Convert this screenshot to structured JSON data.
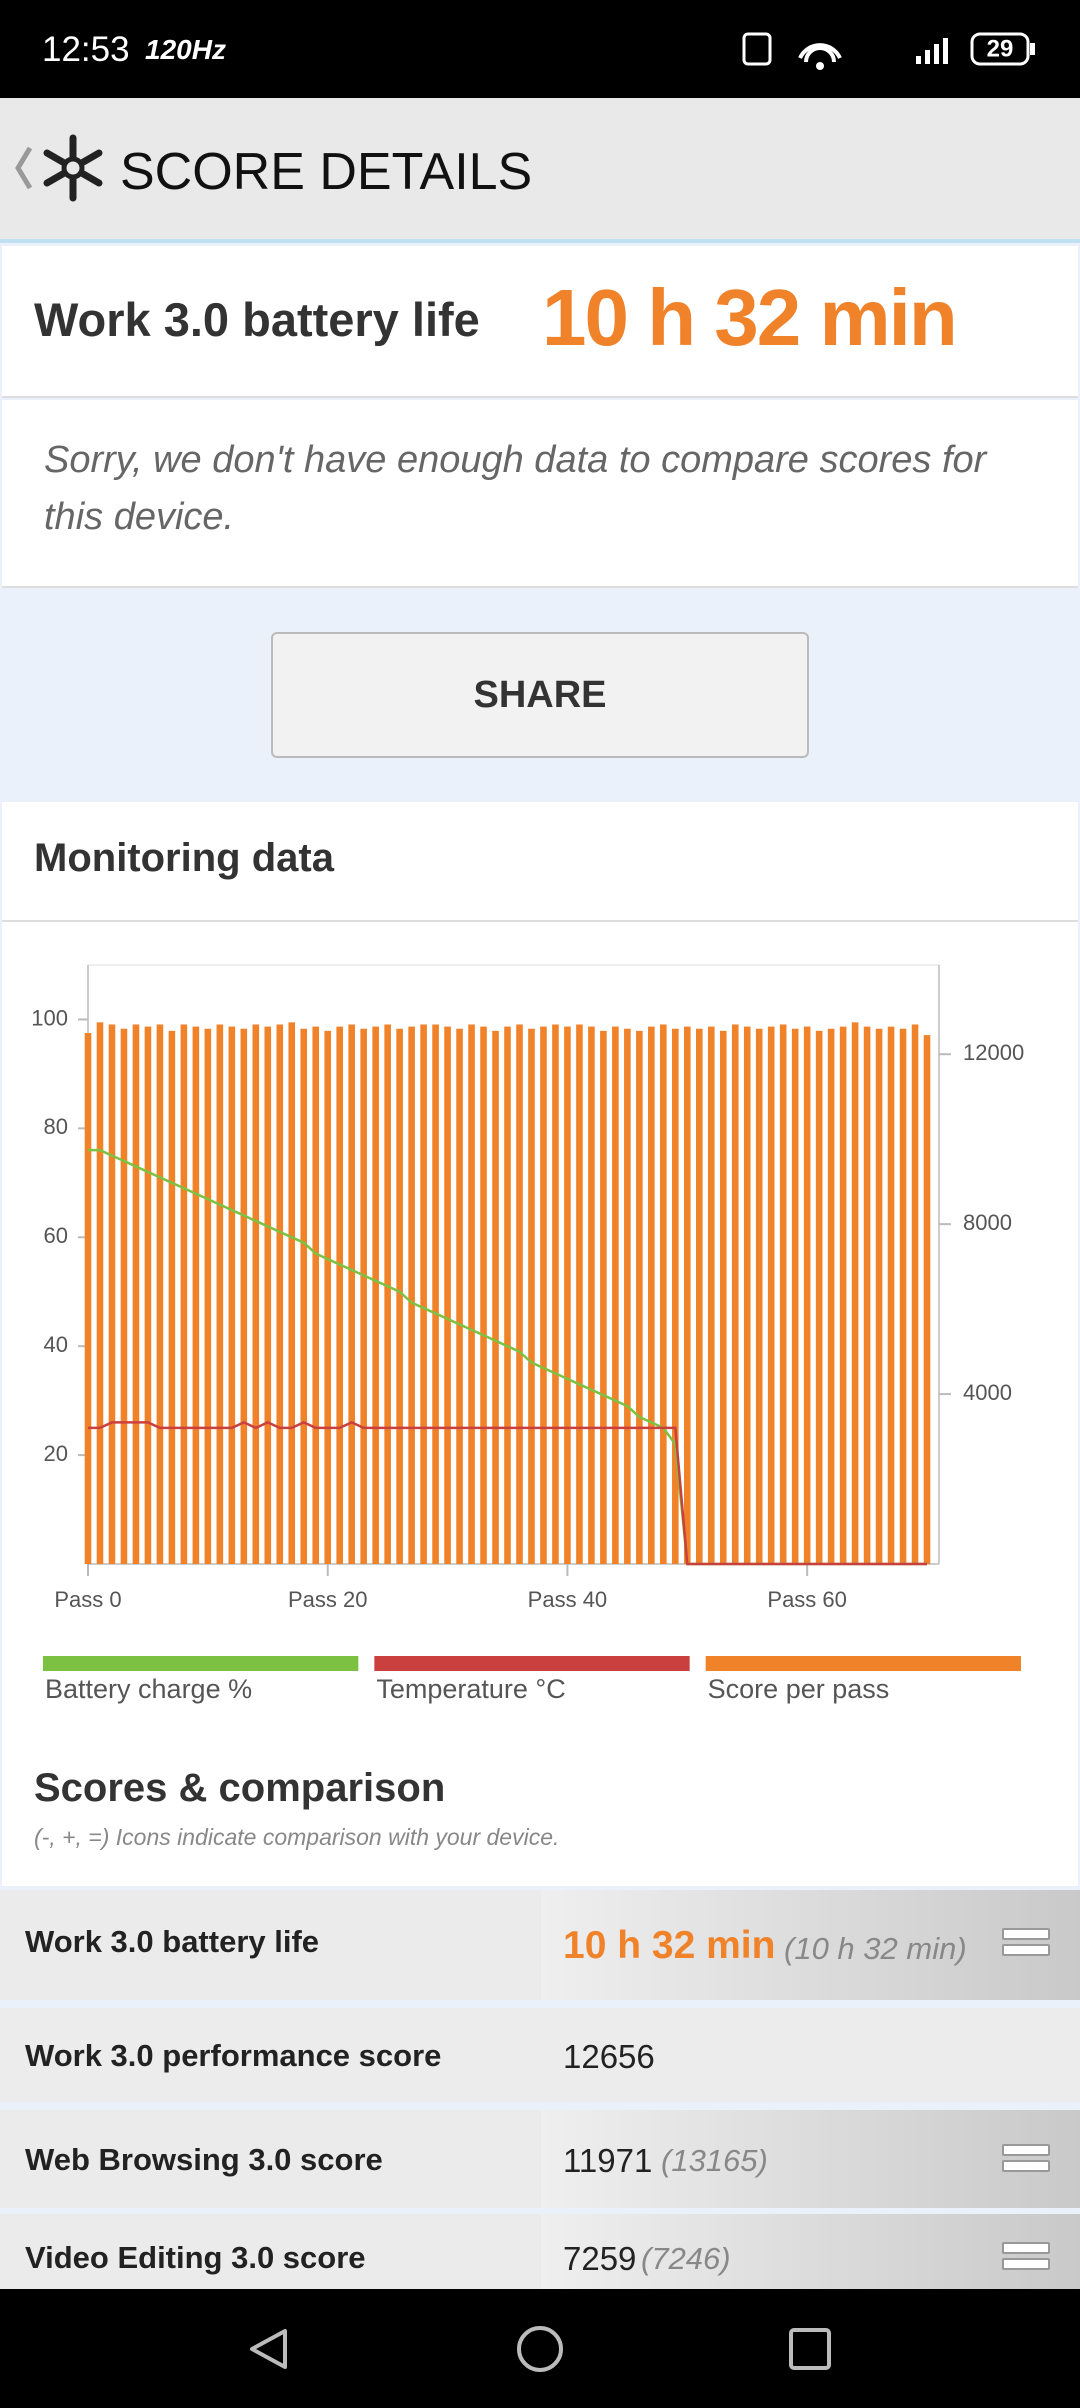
{
  "status_bar": {
    "time": "12:53",
    "refresh_rate": "120Hz",
    "battery": "29"
  },
  "header": {
    "title": "SCORE DETAILS"
  },
  "summary": {
    "label": "Work 3.0 battery life",
    "value": "10 h 32 min",
    "note": "Sorry, we don't have enough data to compare scores for this device."
  },
  "share_button": "SHARE",
  "monitoring": {
    "title": "Monitoring data"
  },
  "chart_data": {
    "type": "bar",
    "x": [
      0,
      1,
      2,
      3,
      4,
      5,
      6,
      7,
      8,
      9,
      10,
      11,
      12,
      13,
      14,
      15,
      16,
      17,
      18,
      19,
      20,
      21,
      22,
      23,
      24,
      25,
      26,
      27,
      28,
      29,
      30,
      31,
      32,
      33,
      34,
      35,
      36,
      37,
      38,
      39,
      40,
      41,
      42,
      43,
      44,
      45,
      46,
      47,
      48,
      49,
      50,
      51,
      52,
      53,
      54,
      55,
      56,
      57,
      58,
      59,
      60,
      61,
      62,
      63,
      64,
      65,
      66,
      67,
      68,
      69,
      70
    ],
    "xlim": [
      0,
      71
    ],
    "xticks": [
      {
        "value": 0,
        "label": "Pass 0"
      },
      {
        "value": 20,
        "label": "Pass 20"
      },
      {
        "value": 40,
        "label": "Pass 40"
      },
      {
        "value": 60,
        "label": "Pass 60"
      }
    ],
    "ylim": [
      0,
      110
    ],
    "yticks": [
      20,
      40,
      60,
      80,
      100
    ],
    "y2lim": [
      0,
      14100
    ],
    "y2ticks": [
      4000,
      8000,
      12000
    ],
    "series": [
      {
        "name": "Battery charge %",
        "type": "line",
        "color": "#7cc142",
        "values": [
          76,
          76,
          75,
          74,
          73,
          72,
          71,
          70,
          69,
          68,
          67,
          66,
          65,
          64,
          63,
          62,
          61,
          60,
          59,
          57,
          56,
          55,
          54,
          53,
          52,
          51,
          50,
          48,
          47,
          46,
          45,
          44,
          43,
          42,
          41,
          40,
          39,
          37,
          36,
          35,
          34,
          33,
          32,
          31,
          30,
          29,
          27,
          26,
          25,
          22,
          0,
          0,
          0,
          0,
          0,
          0,
          0,
          0,
          0,
          0,
          0,
          0,
          0,
          0,
          0,
          0,
          0,
          0,
          0,
          0,
          0
        ]
      },
      {
        "name": "Temperature °C",
        "type": "line",
        "color": "#c9403f",
        "values": [
          25,
          25,
          26,
          26,
          26,
          26,
          25,
          25,
          25,
          25,
          25,
          25,
          25,
          26,
          25,
          26,
          25,
          25,
          26,
          25,
          25,
          25,
          26,
          25,
          25,
          25,
          25,
          25,
          25,
          25,
          25,
          25,
          25,
          25,
          25,
          25,
          25,
          25,
          25,
          25,
          25,
          25,
          25,
          25,
          25,
          25,
          25,
          25,
          25,
          25,
          0,
          0,
          0,
          0,
          0,
          0,
          0,
          0,
          0,
          0,
          0,
          0,
          0,
          0,
          0,
          0,
          0,
          0,
          0,
          0,
          0
        ]
      },
      {
        "name": "Score per pass",
        "type": "bar",
        "axis": "y2",
        "color": "#f0822a",
        "values": [
          12500,
          12750,
          12700,
          12600,
          12700,
          12650,
          12700,
          12550,
          12700,
          12650,
          12600,
          12700,
          12650,
          12600,
          12700,
          12650,
          12700,
          12750,
          12600,
          12650,
          12550,
          12650,
          12700,
          12600,
          12650,
          12700,
          12600,
          12650,
          12700,
          12700,
          12650,
          12600,
          12700,
          12650,
          12550,
          12650,
          12700,
          12600,
          12650,
          12700,
          12650,
          12700,
          12650,
          12550,
          12650,
          12600,
          12550,
          12650,
          12700,
          12600,
          12650,
          12600,
          12650,
          12550,
          12700,
          12650,
          12600,
          12650,
          12700,
          12600,
          12650,
          12550,
          12600,
          12650,
          12750,
          12650,
          12600,
          12650,
          12600,
          12700,
          12450
        ]
      }
    ]
  },
  "scores": {
    "title": "Scores & comparison",
    "subtitle": "(-, +, =) Icons indicate comparison with your device.",
    "rows": [
      {
        "name": "Work 3.0 battery life",
        "value": "10 h 32 min",
        "comparison": "(10 h 32 min)"
      },
      {
        "name": "Work 3.0 performance score",
        "value": 12656
      },
      {
        "name": "Web Browsing 3.0 score",
        "value": 11971,
        "comparison": "(13165)"
      },
      {
        "name": "Video Editing 3.0 score",
        "value": 7259,
        "comparison": "(7246)"
      }
    ]
  }
}
